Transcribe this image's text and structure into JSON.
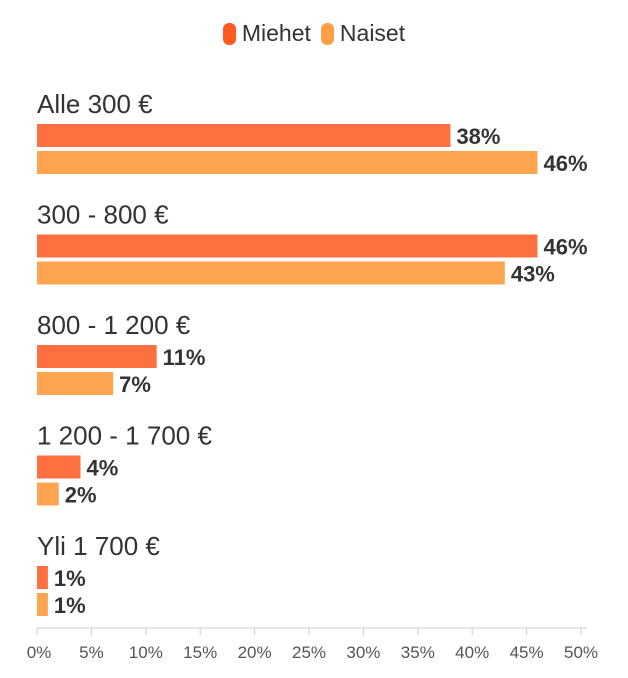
{
  "chart_data": {
    "type": "bar",
    "orientation": "horizontal",
    "categories": [
      "Alle 300 €",
      "300 - 800 €",
      "800 - 1 200 €",
      "1 200 - 1 700 €",
      "Yli 1 700 €"
    ],
    "series": [
      {
        "name": "Miehet",
        "color": "#ff7040",
        "values": [
          38,
          46,
          11,
          4,
          1
        ]
      },
      {
        "name": "Naiset",
        "color": "#ffa54f",
        "values": [
          46,
          43,
          7,
          2,
          1
        ]
      }
    ],
    "value_labels": {
      "Miehet": [
        "38%",
        "46%",
        "11%",
        "4%",
        "1%"
      ],
      "Naiset": [
        "46%",
        "43%",
        "7%",
        "2%",
        "1%"
      ]
    },
    "xlim": [
      0,
      50
    ],
    "x_ticks": [
      0,
      5,
      10,
      15,
      20,
      25,
      30,
      35,
      40,
      45,
      50
    ],
    "x_tick_labels": [
      "0%",
      "5%",
      "10%",
      "15%",
      "20%",
      "25%",
      "30%",
      "35%",
      "40%",
      "45%",
      "50%"
    ],
    "legend_position": "top-center",
    "grid": false,
    "legend_colors": {
      "miehet": "#ff5a1f",
      "naiset": "#ff9f45"
    }
  }
}
